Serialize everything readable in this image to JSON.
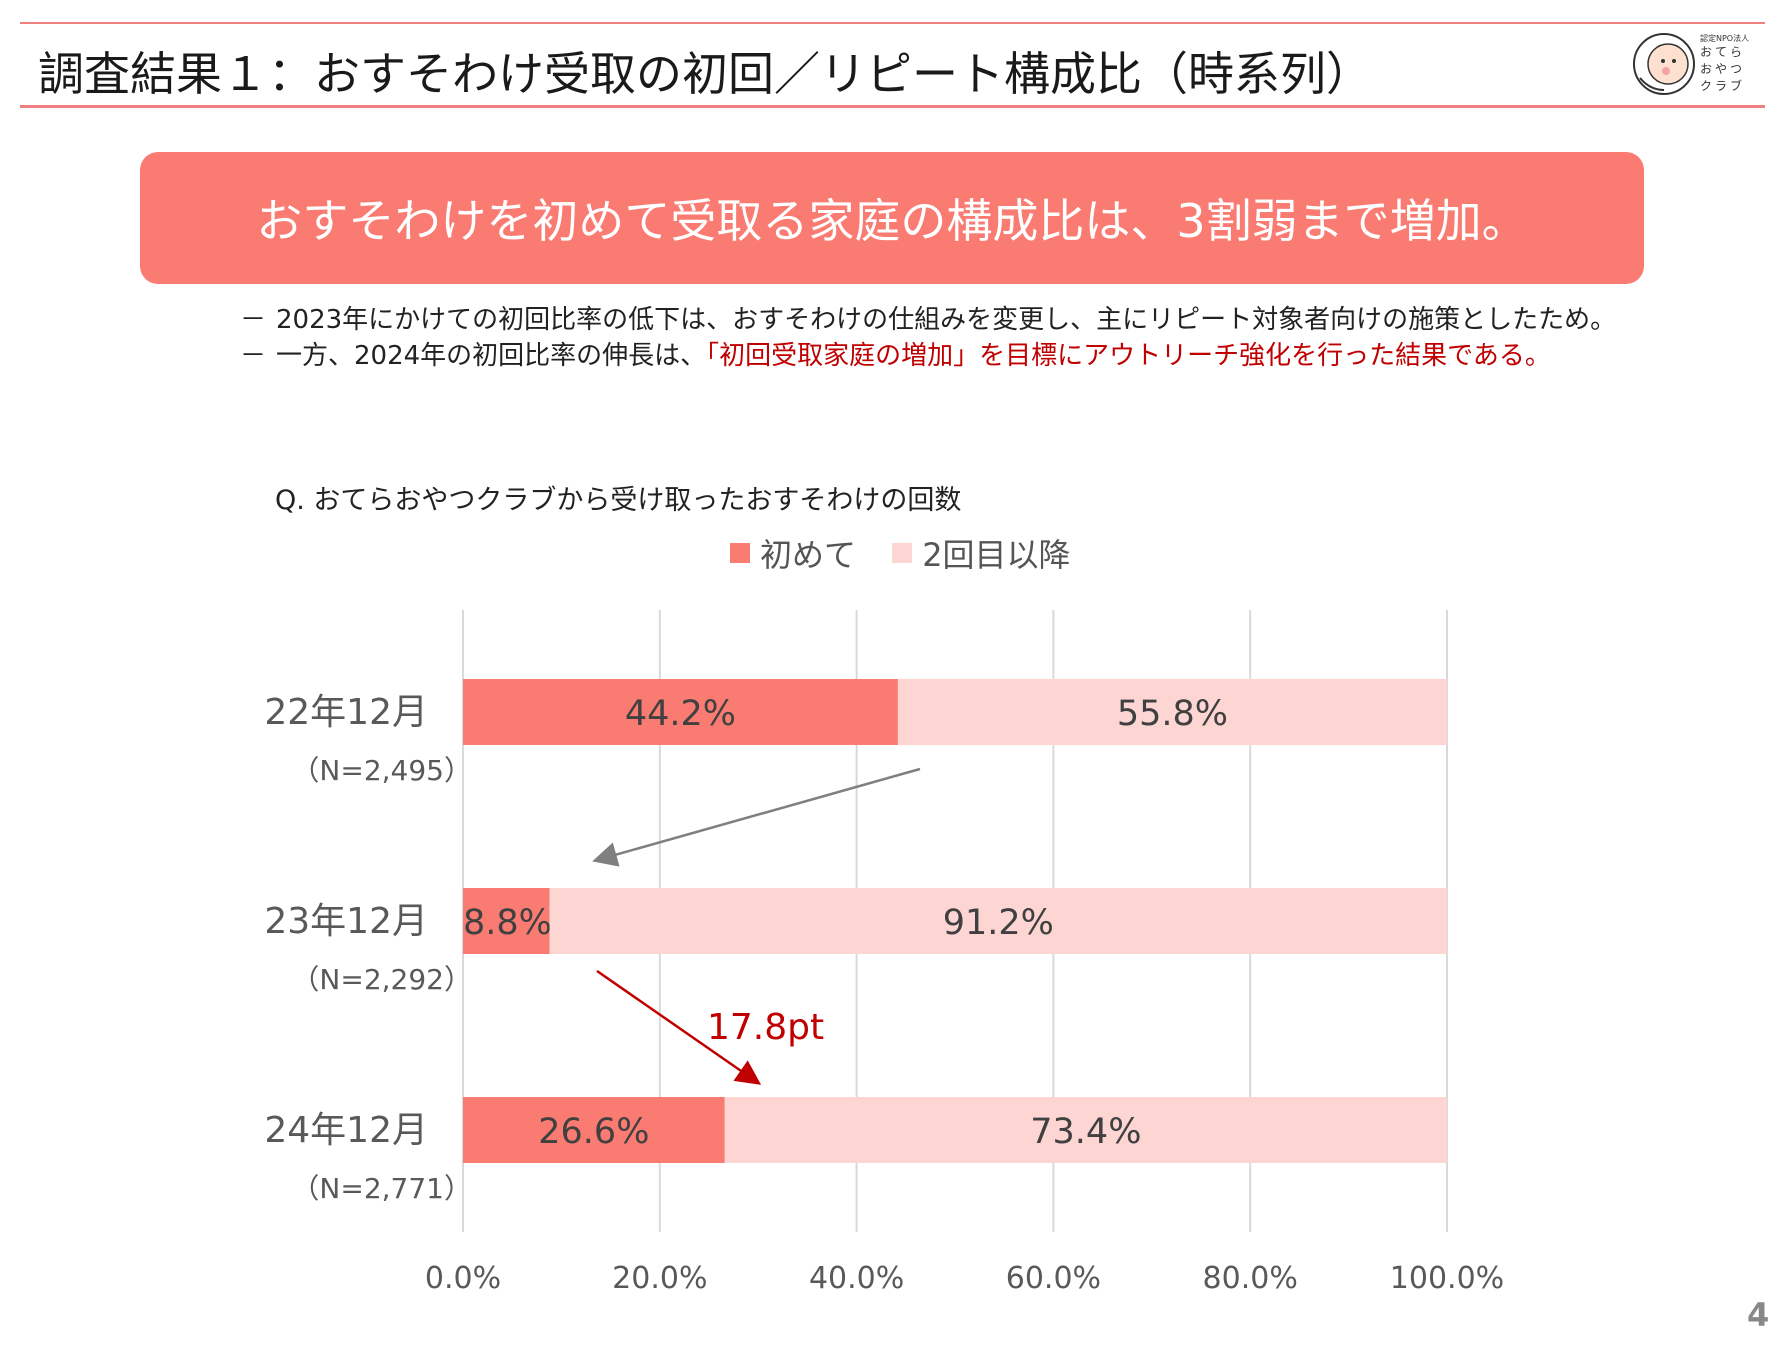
{
  "header": {
    "title": "調査結果１：おすそわけ受取の初回／リピート構成比（時系列）",
    "logo": {
      "small_text": "認定NPO法人",
      "line1": "おてら",
      "line2": "おやつ",
      "line3": "クラブ"
    }
  },
  "banner": {
    "text": "おすそわけを初めて受取る家庭の構成比は、3割弱まで増加。"
  },
  "bullets": [
    {
      "dash": "－",
      "text": "2023年にかけての初回比率の低下は、おすそわけの仕組みを変更し、主にリピート対象者向けの施策としたため。",
      "highlight": ""
    },
    {
      "dash": "－",
      "text": "一方、2024年の初回比率の伸長は、",
      "highlight": "「初回受取家庭の増加」を目標にアウトリーチ強化を行った結果である。"
    }
  ],
  "question": "Q.  おてらおやつクラブから受け取ったおすそわけの回数",
  "colors": {
    "first": "#fa7b72",
    "repeat": "#fdd6d4",
    "accent": "#c00000",
    "grid": "#d9d9d9",
    "arrow_gray": "#7f7f7f"
  },
  "chart_data": {
    "type": "bar",
    "orientation": "horizontal",
    "stacked": true,
    "title": "",
    "categories": [
      "22年12月",
      "23年12月",
      "24年12月"
    ],
    "category_notes": [
      "（N=2,495）",
      "（N=2,292）",
      "（N=2,771）"
    ],
    "series": [
      {
        "name": "初めて",
        "values": [
          44.2,
          8.8,
          26.6
        ],
        "labels": [
          "44.2%",
          "8.8%",
          "26.6%"
        ]
      },
      {
        "name": "2回目以降",
        "values": [
          55.8,
          91.2,
          73.4
        ],
        "labels": [
          "55.8%",
          "91.2%",
          "73.4%"
        ]
      }
    ],
    "xlim": [
      0,
      100
    ],
    "xticks": [
      0,
      20,
      40,
      60,
      80,
      100
    ],
    "xtick_labels": [
      "0.0%",
      "20.0%",
      "40.0%",
      "60.0%",
      "80.0%",
      "100.0%"
    ],
    "grid": true,
    "legend_position": "top",
    "annotations": [
      {
        "type": "arrow",
        "from_category": "22年12月",
        "to_category": "23年12月",
        "color": "gray",
        "text": ""
      },
      {
        "type": "arrow",
        "from_category": "23年12月",
        "to_category": "24年12月",
        "color": "red",
        "text": "17.8pt"
      }
    ]
  },
  "page_number": "4"
}
